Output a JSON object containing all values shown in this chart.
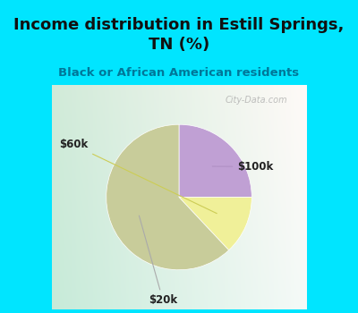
{
  "title": "Income distribution in Estill Springs,\nTN (%)",
  "subtitle": "Black or African American residents",
  "slices": [
    {
      "label": "$100k",
      "value": 25,
      "color": "#c0a0d4"
    },
    {
      "label": "$60k",
      "value": 13,
      "color": "#f0f099"
    },
    {
      "label": "$20k",
      "value": 62,
      "color": "#c8cc9a"
    }
  ],
  "startangle": 90,
  "bg_color_top": "#00e5ff",
  "chart_bg_left": "#c8e8d8",
  "chart_bg_right": "#e8f5ee",
  "title_color": "#111111",
  "subtitle_color": "#007799",
  "watermark": "City-Data.com",
  "label_color": "#222222",
  "figsize": [
    4.0,
    3.5
  ],
  "dpi": 100,
  "label_positions": {
    "$100k": [
      1.05,
      0.42
    ],
    "$60k": [
      -1.45,
      0.72
    ],
    "$20k": [
      -0.22,
      -1.42
    ]
  },
  "arrow_colors": {
    "$100k": "#b090c4",
    "$60k": "#cccc55",
    "$20k": "#aaaaaa"
  }
}
